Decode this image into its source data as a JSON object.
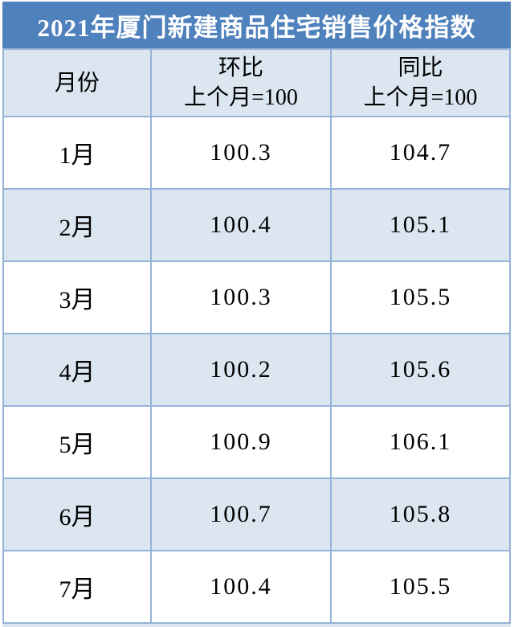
{
  "title": "2021年厦门新建商品住宅销售价格指数",
  "table": {
    "columns": [
      {
        "label": "月份",
        "sublabel": ""
      },
      {
        "label": "环比",
        "sublabel": "上个月=100"
      },
      {
        "label": "同比",
        "sublabel": "上个月=100"
      }
    ],
    "rows": [
      {
        "month": "1月",
        "mom": "100.3",
        "yoy": "104.7"
      },
      {
        "month": "2月",
        "mom": "100.4",
        "yoy": "105.1"
      },
      {
        "month": "3月",
        "mom": "100.3",
        "yoy": "105.5"
      },
      {
        "month": "4月",
        "mom": "100.2",
        "yoy": "105.6"
      },
      {
        "month": "5月",
        "mom": "100.9",
        "yoy": "106.1"
      },
      {
        "month": "6月",
        "mom": "100.7",
        "yoy": "105.8"
      },
      {
        "month": "7月",
        "mom": "100.4",
        "yoy": "105.5"
      }
    ]
  },
  "colors": {
    "title_bg": "#4f81bd",
    "title_text": "#ffffff",
    "header_bg": "#dce6f1",
    "alt_row_bg": "#dce6f1",
    "row_bg": "#ffffff",
    "border": "#95b3d7",
    "text": "#000000"
  },
  "chart_data": {
    "type": "table",
    "title": "2021年厦门新建商品住宅销售价格指数",
    "categories": [
      "1月",
      "2月",
      "3月",
      "4月",
      "5月",
      "6月",
      "7月"
    ],
    "series": [
      {
        "name": "环比 上个月=100",
        "values": [
          100.3,
          100.4,
          100.3,
          100.2,
          100.9,
          100.7,
          100.4
        ]
      },
      {
        "name": "同比 上个月=100",
        "values": [
          104.7,
          105.1,
          105.5,
          105.6,
          106.1,
          105.8,
          105.5
        ]
      }
    ],
    "layout": {
      "header_rows": 1,
      "alternating_row_shading": true,
      "legend_position": "none",
      "grid": true
    }
  }
}
